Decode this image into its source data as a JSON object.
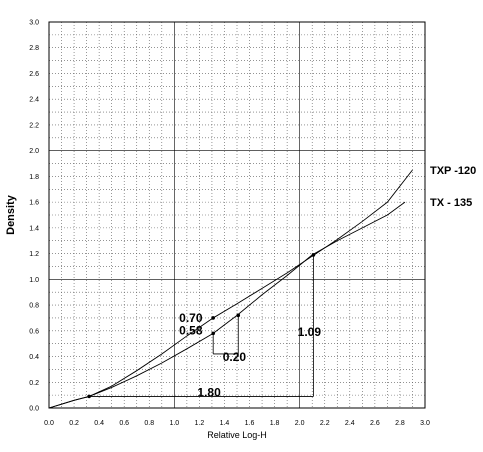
{
  "chart_data": {
    "type": "line",
    "xlabel": "Relative Log-H",
    "ylabel": "Density",
    "xlim": [
      0,
      3
    ],
    "ylim": [
      0,
      3
    ],
    "x_ticks": [
      "0.0",
      "0.2",
      "0.4",
      "0.6",
      "0.8",
      "1.0",
      "1.2",
      "1.4",
      "1.6",
      "1.8",
      "2.0",
      "2.2",
      "2.4",
      "2.6",
      "2.8",
      "3.0"
    ],
    "y_ticks": [
      "0.0",
      "0.2",
      "0.4",
      "0.6",
      "0.8",
      "1.0",
      "1.2",
      "1.4",
      "1.6",
      "1.8",
      "2.0",
      "2.2",
      "2.4",
      "2.6",
      "2.8",
      "3.0"
    ],
    "grid": true,
    "series": [
      {
        "name": "TXP -120",
        "x": [
          0.0,
          0.1,
          0.2,
          0.32,
          0.5,
          0.7,
          0.9,
          1.1,
          1.31,
          1.5,
          1.7,
          1.9,
          2.1,
          2.3,
          2.5,
          2.7,
          2.9
        ],
        "y": [
          0.0,
          0.03,
          0.06,
          0.09,
          0.17,
          0.29,
          0.42,
          0.56,
          0.7,
          0.81,
          0.93,
          1.05,
          1.18,
          1.31,
          1.45,
          1.6,
          1.85
        ]
      },
      {
        "name": "TX - 135",
        "x": [
          0.0,
          0.1,
          0.2,
          0.32,
          0.5,
          0.7,
          0.9,
          1.1,
          1.31,
          1.5,
          1.7,
          1.9,
          2.1,
          2.3,
          2.5,
          2.7,
          2.84
        ],
        "y": [
          0.0,
          0.03,
          0.06,
          0.09,
          0.16,
          0.25,
          0.35,
          0.46,
          0.58,
          0.72,
          0.88,
          1.03,
          1.19,
          1.3,
          1.4,
          1.5,
          1.6
        ]
      }
    ],
    "annotations": [
      {
        "text": "0.70",
        "x": 1.31,
        "y": 0.7
      },
      {
        "text": "0.58",
        "x": 1.31,
        "y": 0.58
      },
      {
        "text": "0.20",
        "x": 1.41,
        "y": 0.46
      },
      {
        "text": "1.09",
        "x": 2.0,
        "y": 0.6
      },
      {
        "text": "1.80",
        "x": 1.2,
        "y": 0.13
      }
    ],
    "markers": [
      {
        "x": 0.32,
        "y": 0.09
      },
      {
        "x": 1.31,
        "y": 0.7
      },
      {
        "x": 1.31,
        "y": 0.58
      },
      {
        "x": 1.51,
        "y": 0.72
      },
      {
        "x": 2.11,
        "y": 1.19
      }
    ]
  }
}
